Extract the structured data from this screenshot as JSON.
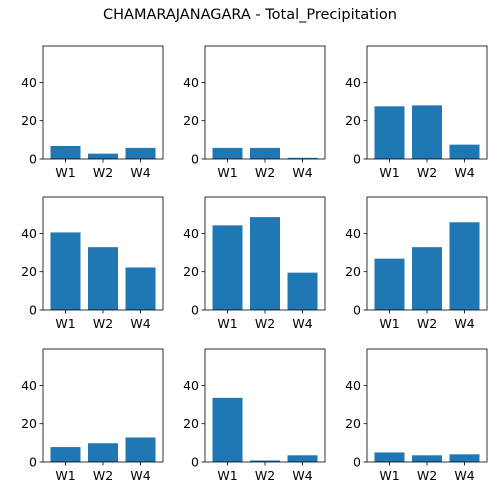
{
  "chart_data": {
    "title": "CHAMARAJANAGARA - Total_Precipitation",
    "layout": "3x3 grid of small bar charts, shared y-axis range",
    "bar_color": "#1f77b4",
    "charts": [
      {
        "type": "bar",
        "categories": [
          "W1",
          "W2",
          "W4"
        ],
        "values": [
          6.8,
          2.8,
          5.8
        ],
        "ylim": [
          0,
          59
        ],
        "yticks": [
          0,
          20,
          40
        ]
      },
      {
        "type": "bar",
        "categories": [
          "W1",
          "W2",
          "W4"
        ],
        "values": [
          5.8,
          5.8,
          0.6
        ],
        "ylim": [
          0,
          59
        ],
        "yticks": [
          0,
          20,
          40
        ]
      },
      {
        "type": "bar",
        "categories": [
          "W1",
          "W2",
          "W4"
        ],
        "values": [
          27.5,
          28.0,
          7.5
        ],
        "ylim": [
          0,
          59
        ],
        "yticks": [
          0,
          20,
          40
        ]
      },
      {
        "type": "bar",
        "categories": [
          "W1",
          "W2",
          "W4"
        ],
        "values": [
          40.5,
          32.8,
          22.2
        ],
        "ylim": [
          0,
          59
        ],
        "yticks": [
          0,
          20,
          40
        ]
      },
      {
        "type": "bar",
        "categories": [
          "W1",
          "W2",
          "W4"
        ],
        "values": [
          44.2,
          48.5,
          19.5
        ],
        "ylim": [
          0,
          59
        ],
        "yticks": [
          0,
          20,
          40
        ]
      },
      {
        "type": "bar",
        "categories": [
          "W1",
          "W2",
          "W4"
        ],
        "values": [
          26.8,
          32.8,
          45.8
        ],
        "ylim": [
          0,
          59
        ],
        "yticks": [
          0,
          20,
          40
        ]
      },
      {
        "type": "bar",
        "categories": [
          "W1",
          "W2",
          "W4"
        ],
        "values": [
          7.8,
          9.8,
          12.8
        ],
        "ylim": [
          0,
          59
        ],
        "yticks": [
          0,
          20,
          40
        ]
      },
      {
        "type": "bar",
        "categories": [
          "W1",
          "W2",
          "W4"
        ],
        "values": [
          33.5,
          0.8,
          3.5
        ],
        "ylim": [
          0,
          59
        ],
        "yticks": [
          0,
          20,
          40
        ]
      },
      {
        "type": "bar",
        "categories": [
          "W1",
          "W2",
          "W4"
        ],
        "values": [
          5.0,
          3.5,
          4.0
        ],
        "ylim": [
          0,
          59
        ],
        "yticks": [
          0,
          20,
          40
        ]
      }
    ]
  }
}
